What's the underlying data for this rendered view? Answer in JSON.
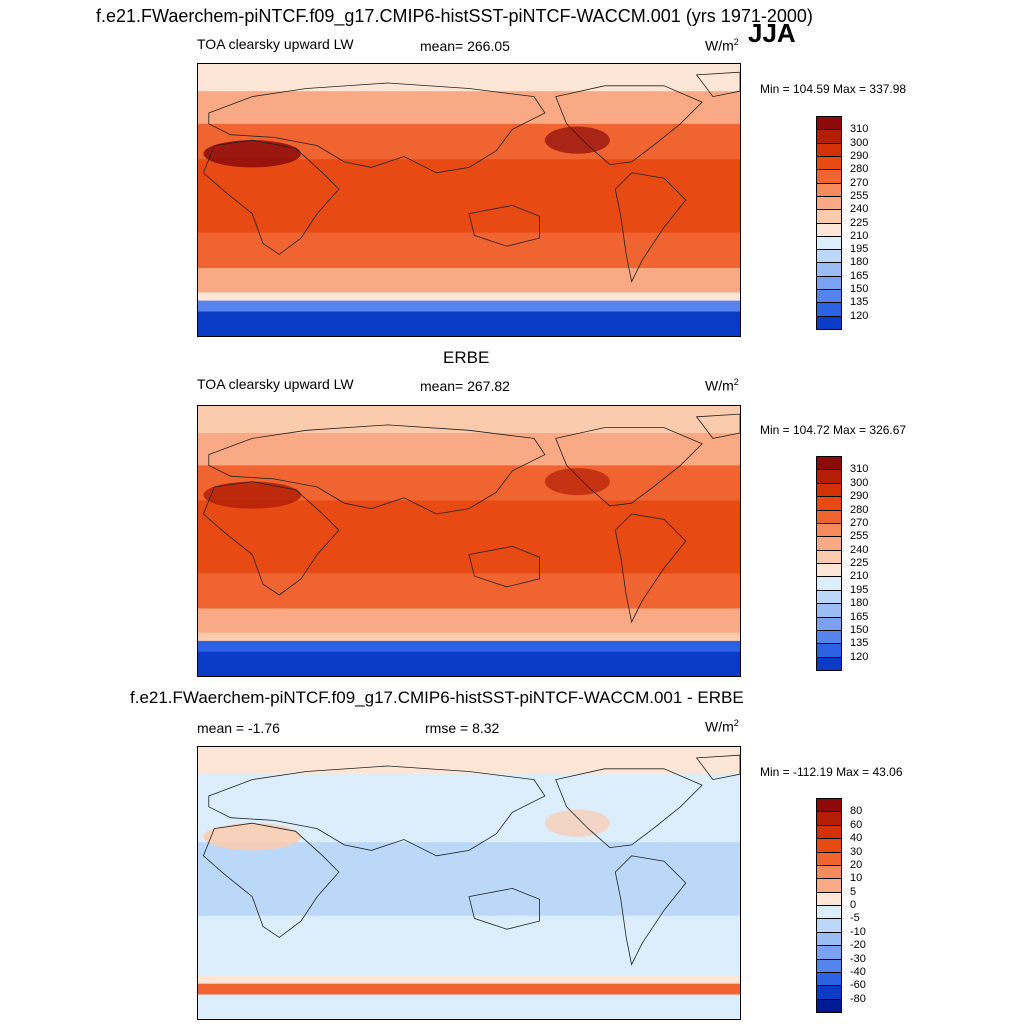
{
  "header": {
    "title": "f.e21.FWaerchem-piNTCF.f09_g17.CMIP6-histSST-piNTCF-WACCM.001 (yrs 1971-2000)",
    "season": "JJA"
  },
  "panels": [
    {
      "id": "model",
      "title": "",
      "left_label": "TOA clearsky upward LW",
      "center_label": "mean= 266.05",
      "units": "W/m",
      "units_sup": "2",
      "minmax": "Min = 104.59 Max = 337.98",
      "colorbar": {
        "labels": [
          "310",
          "300",
          "290",
          "280",
          "270",
          "255",
          "240",
          "225",
          "210",
          "195",
          "180",
          "165",
          "150",
          "135",
          "120"
        ],
        "colors": [
          "#8c0a0a",
          "#b41e05",
          "#d23205",
          "#e84a14",
          "#f06432",
          "#f58a5c",
          "#f9aa84",
          "#fbcbae",
          "#fde6d6",
          "#dceefc",
          "#bcd8f8",
          "#9abef4",
          "#7aa2f0",
          "#5484ec",
          "#2c62e4",
          "#0a3cc8"
        ]
      },
      "map_fill": {
        "tropics": "#e84a14",
        "subtropics": "#f06432",
        "midlat": "#f9aa84",
        "highlat": "#fde6d6",
        "polar_edge": "#5484ec",
        "polar": "#0a3cc8",
        "desert": "#8c0a0a"
      }
    },
    {
      "id": "obs",
      "title": "ERBE",
      "left_label": "TOA clearsky upward LW",
      "center_label": "mean= 267.82",
      "units": "W/m",
      "units_sup": "2",
      "minmax": "Min = 104.72 Max = 326.67",
      "colorbar": {
        "labels": [
          "310",
          "300",
          "290",
          "280",
          "270",
          "255",
          "240",
          "225",
          "210",
          "195",
          "180",
          "165",
          "150",
          "135",
          "120"
        ],
        "colors": [
          "#8c0a0a",
          "#b41e05",
          "#d23205",
          "#e84a14",
          "#f06432",
          "#f58a5c",
          "#f9aa84",
          "#fbcbae",
          "#fde6d6",
          "#dceefc",
          "#bcd8f8",
          "#9abef4",
          "#7aa2f0",
          "#5484ec",
          "#2c62e4",
          "#0a3cc8"
        ]
      },
      "map_fill": {
        "tropics": "#e84a14",
        "subtropics": "#f06432",
        "midlat": "#f9aa84",
        "highlat": "#fbcbae",
        "polar_edge": "#2c62e4",
        "polar": "#0a3cc8",
        "desert": "#b41e05"
      }
    },
    {
      "id": "diff",
      "title": "f.e21.FWaerchem-piNTCF.f09_g17.CMIP6-histSST-piNTCF-WACCM.001 - ERBE",
      "left_label": "mean =  -1.76",
      "center_label": "rmse =   8.32",
      "units": "W/m",
      "units_sup": "2",
      "minmax": "Min = -112.19 Max =  43.06",
      "colorbar": {
        "labels": [
          "80",
          "60",
          "40",
          "30",
          "20",
          "10",
          "5",
          "0",
          "-5",
          "-10",
          "-20",
          "-30",
          "-40",
          "-60",
          "-80"
        ],
        "colors": [
          "#8c0a0a",
          "#b41e05",
          "#d23205",
          "#e84a14",
          "#f06432",
          "#f58a5c",
          "#f9aa84",
          "#fde6d6",
          "#dceefc",
          "#bcd8f8",
          "#9abef4",
          "#7aa2f0",
          "#5484ec",
          "#2c62e4",
          "#0a3cc8",
          "#001a96"
        ]
      },
      "map_fill": {
        "tropics": "#bcd8f8",
        "subtropics": "#dceefc",
        "midlat": "#dceefc",
        "highlat": "#fde6d6",
        "polar_edge": "#f06432",
        "polar": "#dceefc",
        "desert": "#fbcbae"
      }
    }
  ]
}
